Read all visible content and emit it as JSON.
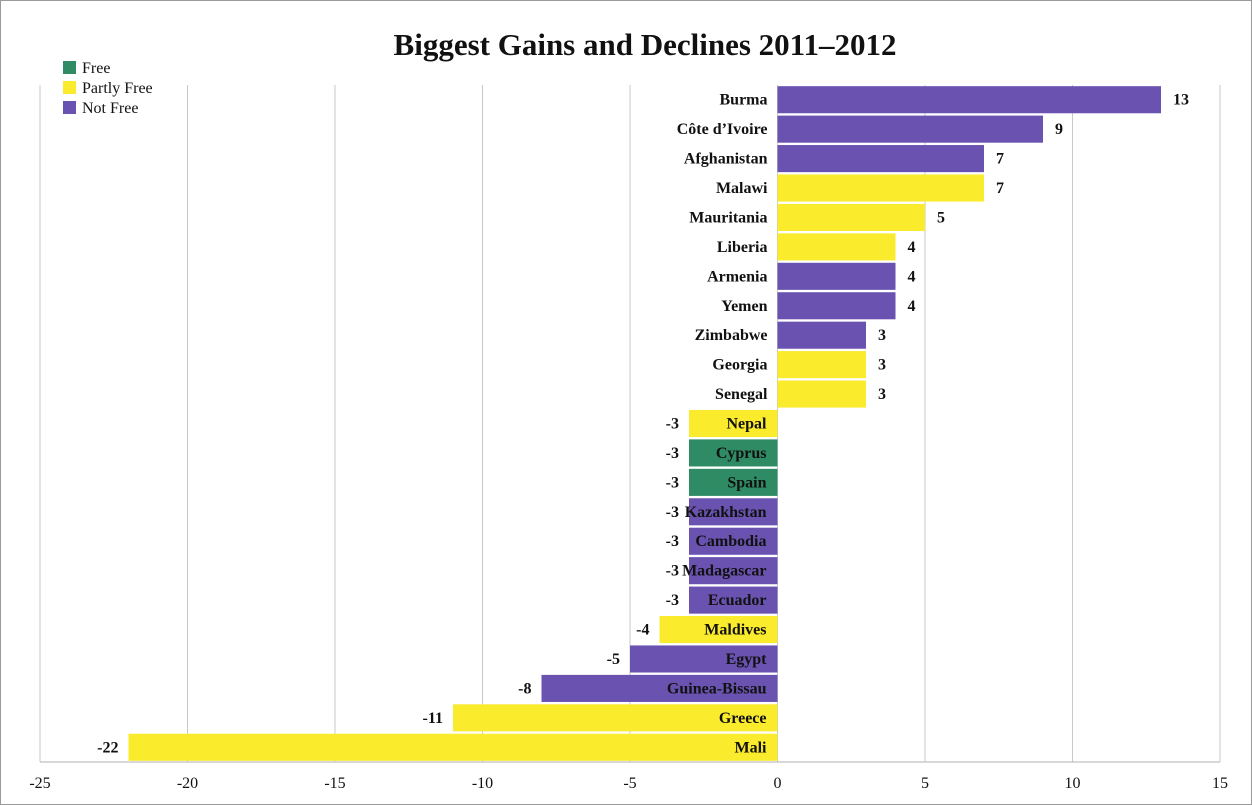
{
  "chart_data": {
    "type": "bar",
    "orientation": "horizontal",
    "title": "Biggest Gains and Declines 2011–2012",
    "xlabel": "",
    "ylabel": "",
    "xlim": [
      -25,
      15
    ],
    "xticks": [
      -25,
      -20,
      -15,
      -10,
      -5,
      0,
      5,
      10,
      15
    ],
    "grid": "vertical",
    "legend_position": "top-left",
    "colors": {
      "Free": "#2e8b64",
      "Partly Free": "#faeb2d",
      "Not Free": "#6952b0"
    },
    "legend": [
      "Free",
      "Partly Free",
      "Not Free"
    ],
    "categories": [
      "Burma",
      "Côte d’Ivoire",
      "Afghanistan",
      "Malawi",
      "Mauritania",
      "Liberia",
      "Armenia",
      "Yemen",
      "Zimbabwe",
      "Georgia",
      "Senegal",
      "Nepal",
      "Cyprus",
      "Spain",
      "Kazakhstan",
      "Cambodia",
      "Madagascar",
      "Ecuador",
      "Maldives",
      "Egypt",
      "Guinea-Bissau",
      "Greece",
      "Mali"
    ],
    "values": [
      13,
      9,
      7,
      7,
      5,
      4,
      4,
      4,
      3,
      3,
      3,
      -3,
      -3,
      -3,
      -3,
      -3,
      -3,
      -3,
      -4,
      -5,
      -8,
      -11,
      -22
    ],
    "status": [
      "Not Free",
      "Not Free",
      "Not Free",
      "Partly Free",
      "Partly Free",
      "Partly Free",
      "Not Free",
      "Not Free",
      "Not Free",
      "Partly Free",
      "Partly Free",
      "Partly Free",
      "Free",
      "Free",
      "Not Free",
      "Not Free",
      "Not Free",
      "Not Free",
      "Partly Free",
      "Not Free",
      "Not Free",
      "Partly Free",
      "Partly Free"
    ]
  }
}
